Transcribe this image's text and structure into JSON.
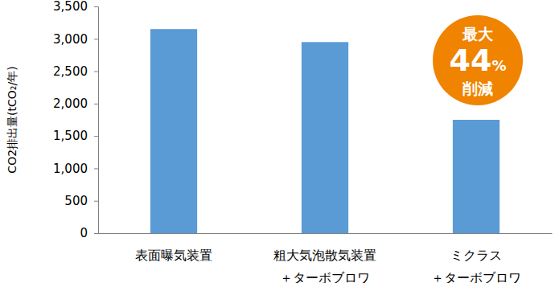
{
  "chart_data": {
    "type": "bar",
    "y_label": "CO2排出量(tCO₂/年)",
    "categories": [
      "表面曝気装置",
      "粗大気泡散気装置\n＋ターボブロワ",
      "ミクラス\n＋ターボブロワ"
    ],
    "values": [
      3150,
      2950,
      1750
    ],
    "color": "#5b9bd5",
    "ylim": [
      0,
      3500
    ],
    "yticks": [
      0,
      500,
      {
        "value": 1000,
        "label": "1,000"
      },
      {
        "value": 1500,
        "label": "1,500"
      },
      {
        "value": 2000,
        "label": "2,000"
      },
      {
        "value": 2500,
        "label": "2,500"
      },
      {
        "value": 3000,
        "label": "3,000"
      },
      {
        "value": 3500,
        "label": "3,500"
      }
    ],
    "grid": false,
    "annotations": [
      "最大",
      "44%",
      "削減"
    ]
  }
}
